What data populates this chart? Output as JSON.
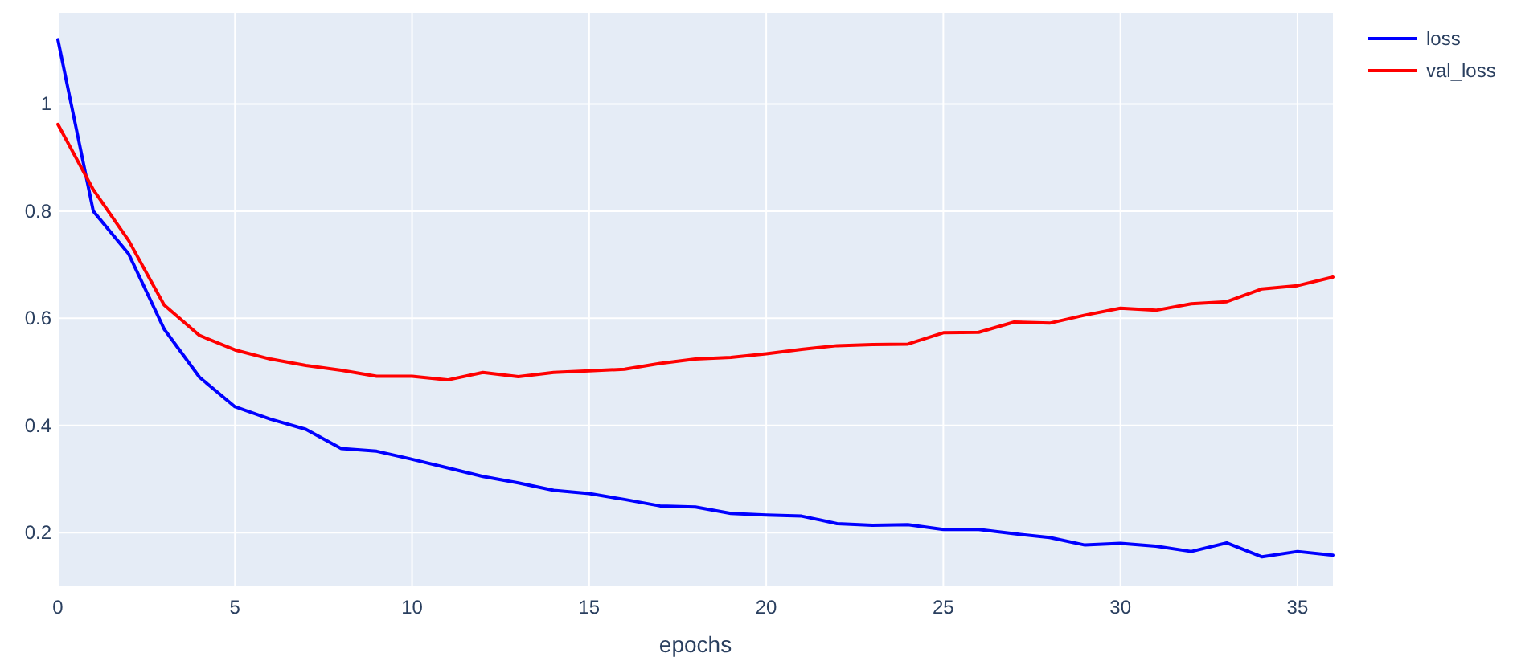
{
  "chart_data": {
    "type": "line",
    "xlabel": "epochs",
    "x": [
      0,
      1,
      2,
      3,
      4,
      5,
      6,
      7,
      8,
      9,
      10,
      11,
      12,
      13,
      14,
      15,
      16,
      17,
      18,
      19,
      20,
      21,
      22,
      23,
      24,
      25,
      26,
      27,
      28,
      29,
      30,
      31,
      32,
      33,
      34,
      35,
      36
    ],
    "series": [
      {
        "name": "loss",
        "color": "#0000ff",
        "values": [
          1.12,
          0.8,
          0.72,
          0.58,
          0.49,
          0.435,
          0.412,
          0.393,
          0.357,
          0.352,
          0.337,
          0.321,
          0.305,
          0.293,
          0.279,
          0.273,
          0.262,
          0.25,
          0.248,
          0.236,
          0.233,
          0.231,
          0.217,
          0.214,
          0.215,
          0.206,
          0.206,
          0.198,
          0.191,
          0.177,
          0.18,
          0.175,
          0.165,
          0.181,
          0.155,
          0.165,
          0.158
        ]
      },
      {
        "name": "val_loss",
        "color": "#ff0000",
        "values": [
          0.962,
          0.84,
          0.745,
          0.625,
          0.568,
          0.541,
          0.524,
          0.512,
          0.503,
          0.492,
          0.492,
          0.485,
          0.499,
          0.491,
          0.499,
          0.502,
          0.505,
          0.516,
          0.524,
          0.527,
          0.534,
          0.542,
          0.549,
          0.551,
          0.552,
          0.573,
          0.574,
          0.593,
          0.591,
          0.606,
          0.619,
          0.615,
          0.627,
          0.631,
          0.655,
          0.661,
          0.677
        ]
      }
    ],
    "xlim": [
      0,
      36
    ],
    "xticks": [
      0,
      5,
      10,
      15,
      20,
      25,
      30,
      35
    ],
    "ylim": [
      0.1,
      1.17
    ],
    "yticks": [
      0.2,
      0.4,
      0.6,
      0.8,
      1
    ],
    "grid": true,
    "legend": "top right",
    "line_style": "solid"
  }
}
